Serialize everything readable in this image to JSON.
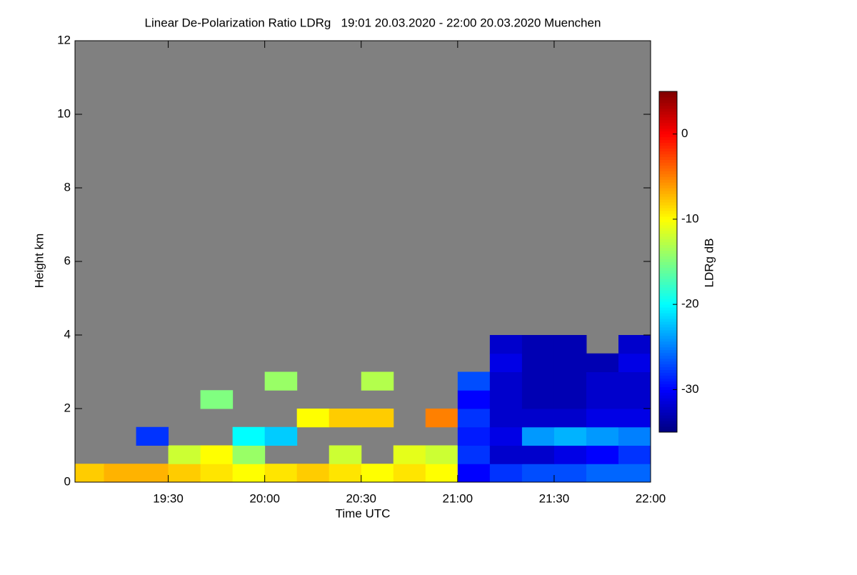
{
  "chart_data": {
    "type": "heatmap",
    "title": "Linear De-Polarization Ratio LDRg   19:01 20.03.2020 - 22:00 20.03.2020 Muenchen",
    "x_label": "Time UTC",
    "y_label": "Height km",
    "colorbar_label": "LDRg dB",
    "xlim": [
      "19:01",
      "22:00"
    ],
    "xticks": [
      "19:30",
      "20:00",
      "20:30",
      "21:00",
      "21:30",
      "22:00"
    ],
    "ylim": [
      0,
      12
    ],
    "yticks": [
      0,
      2,
      4,
      6,
      8,
      10,
      12
    ],
    "zlim": [
      -35,
      5
    ],
    "zticks": [
      0,
      -10,
      -20,
      -30
    ],
    "colormap": "jet",
    "missing_color": "#808080",
    "x_bins": [
      "19:01",
      "19:10",
      "19:20",
      "19:30",
      "19:40",
      "19:50",
      "20:00",
      "20:10",
      "20:20",
      "20:30",
      "20:40",
      "20:50",
      "21:00",
      "21:10",
      "21:20",
      "21:30",
      "21:40",
      "21:50",
      "22:00"
    ],
    "y_bins": [
      0,
      0.5,
      1,
      1.5,
      2,
      2.5,
      3,
      3.5,
      4
    ],
    "z": [
      [
        -8,
        -7,
        -7,
        -8,
        -9,
        -10,
        -9,
        -8,
        -9,
        -10,
        -9,
        -10,
        -30,
        -28,
        -27,
        -27,
        -26,
        -26
      ],
      [
        null,
        null,
        null,
        -12,
        -10,
        -14,
        null,
        null,
        -12,
        null,
        -11,
        -12,
        -28,
        -32,
        -32,
        -31,
        -30,
        -28
      ],
      [
        null,
        null,
        -28,
        null,
        null,
        -20,
        -22,
        null,
        null,
        null,
        null,
        null,
        -29,
        -31,
        -24,
        -23,
        -24,
        -25
      ],
      [
        null,
        null,
        null,
        null,
        null,
        null,
        null,
        -10,
        -8,
        -8,
        null,
        -5,
        -28,
        -32,
        -32,
        -32,
        -31,
        -31
      ],
      [
        null,
        null,
        null,
        null,
        -15,
        null,
        null,
        null,
        null,
        null,
        null,
        null,
        -30,
        -32,
        -33,
        -33,
        -32,
        -32
      ],
      [
        null,
        null,
        null,
        null,
        null,
        null,
        -14,
        null,
        null,
        -13,
        null,
        null,
        -27,
        -32,
        -33,
        -33,
        -32,
        -32
      ],
      [
        null,
        null,
        null,
        null,
        null,
        null,
        null,
        null,
        null,
        null,
        null,
        null,
        null,
        -31,
        -33,
        -33,
        -33,
        -31
      ],
      [
        null,
        null,
        null,
        null,
        null,
        null,
        null,
        null,
        null,
        null,
        null,
        null,
        null,
        -32,
        -33,
        -33,
        null,
        -32
      ]
    ]
  }
}
